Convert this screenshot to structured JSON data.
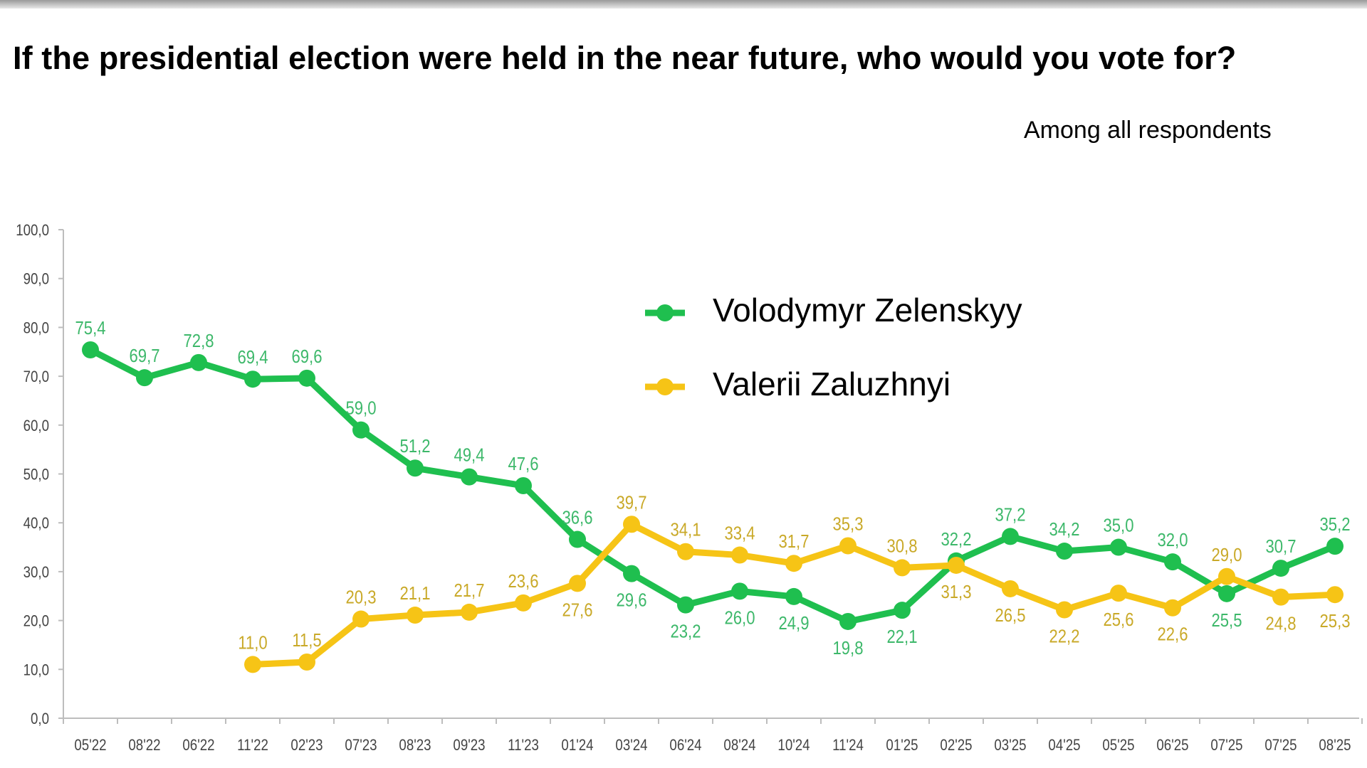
{
  "title": "If the presidential election were held in the near future, who would you vote for?",
  "subtitle": "Among all respondents",
  "chart_data": {
    "type": "line",
    "title": "If the presidential election were held in the near future, who would you vote for?",
    "subtitle": "Among all respondents",
    "xlabel": "",
    "ylabel": "",
    "ylim": [
      0,
      100
    ],
    "yticks": [
      "0,0",
      "10,0",
      "20,0",
      "30,0",
      "40,0",
      "50,0",
      "60,0",
      "70,0",
      "80,0",
      "90,0",
      "100,0"
    ],
    "grid": false,
    "legend_position": "top-center",
    "categories": [
      "05'22",
      "08'22",
      "06'22",
      "11'22",
      "02'23",
      "07'23",
      "08'23",
      "09'23",
      "11'23",
      "01'24",
      "03'24",
      "06'24",
      "08'24",
      "10'24",
      "11'24",
      "01'25",
      "02'25",
      "03'25",
      "04'25",
      "05'25",
      "06'25",
      "07'25",
      "07'25",
      "08'25"
    ],
    "series": [
      {
        "name": "Volodymyr Zelenskyy",
        "color": "#1fbf4f",
        "label_color": "#3db86a",
        "values": [
          75.4,
          69.7,
          72.8,
          69.4,
          69.6,
          59.0,
          51.2,
          49.4,
          47.6,
          36.6,
          29.6,
          23.2,
          26.0,
          24.9,
          19.8,
          22.1,
          32.2,
          37.2,
          34.2,
          35.0,
          32.0,
          25.5,
          30.7,
          35.2
        ],
        "labels": [
          "75,4",
          "69,7",
          "72,8",
          "69,4",
          "69,6",
          "59,0",
          "51,2",
          "49,4",
          "47,6",
          "36,6",
          "29,6",
          "23,2",
          "26,0",
          "24,9",
          "19,8",
          "22,1",
          "32,2",
          "37,2",
          "34,2",
          "35,0",
          "32,0",
          "25,5",
          "30,7",
          "35,2"
        ],
        "label_pos": [
          "above",
          "above",
          "above",
          "above",
          "above",
          "above",
          "above",
          "above",
          "above",
          "above",
          "below",
          "below",
          "below",
          "below",
          "below",
          "below",
          "above",
          "above",
          "above",
          "above",
          "above",
          "below",
          "above",
          "above"
        ]
      },
      {
        "name": "Valerii Zaluzhnyi",
        "color": "#f6c416",
        "label_color": "#c9a928",
        "values": [
          null,
          null,
          null,
          11.0,
          11.5,
          20.3,
          21.1,
          21.7,
          23.6,
          27.6,
          39.7,
          34.1,
          33.4,
          31.7,
          35.3,
          30.8,
          31.3,
          26.5,
          22.2,
          25.6,
          22.6,
          29.0,
          24.8,
          25.3
        ],
        "labels": [
          null,
          null,
          null,
          "11,0",
          "11,5",
          "20,3",
          "21,1",
          "21,7",
          "23,6",
          "27,6",
          "39,7",
          "34,1",
          "33,4",
          "31,7",
          "35,3",
          "30,8",
          "31,3",
          "26,5",
          "22,2",
          "25,6",
          "22,6",
          "29,0",
          "24,8",
          "25,3"
        ],
        "label_pos": [
          null,
          null,
          null,
          "above",
          "above",
          "above",
          "above",
          "above",
          "above",
          "below",
          "above",
          "above",
          "above",
          "above",
          "above",
          "above",
          "below",
          "below",
          "below",
          "below",
          "below",
          "above",
          "below",
          "below"
        ]
      }
    ]
  }
}
